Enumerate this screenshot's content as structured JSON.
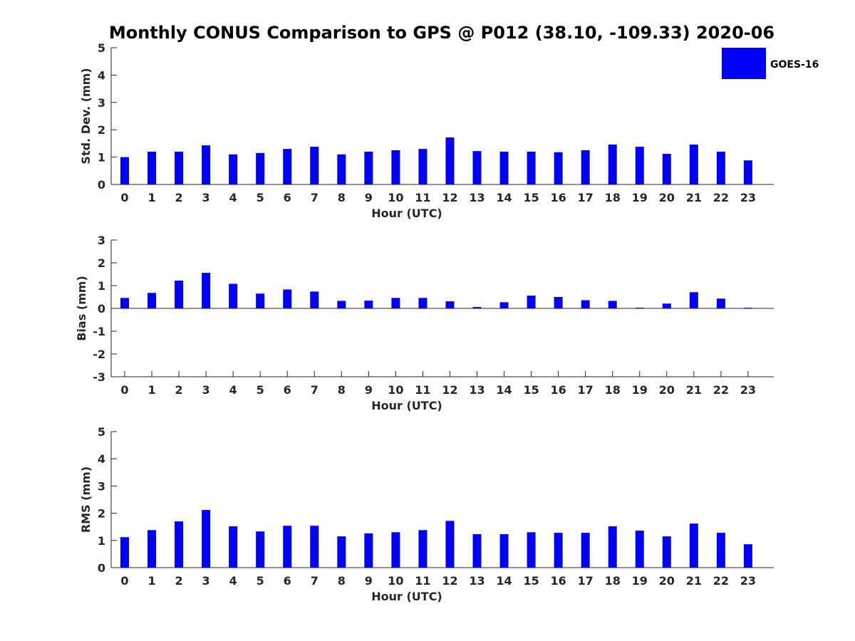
{
  "figure_title": "Monthly CONUS Comparison to GPS @ P012 (38.10, -109.33) 2020-06",
  "legend": {
    "label": "GOES-16",
    "color": "#0000ff"
  },
  "chart_data": [
    {
      "type": "bar",
      "xlabel": "Hour (UTC)",
      "ylabel": "Std. Dev. (mm)",
      "ylim": [
        0,
        5
      ],
      "yticks": [
        "0",
        "1",
        "2",
        "3",
        "4",
        "5"
      ],
      "categories": [
        "0",
        "1",
        "2",
        "3",
        "4",
        "5",
        "6",
        "7",
        "8",
        "9",
        "10",
        "11",
        "12",
        "13",
        "14",
        "15",
        "16",
        "17",
        "18",
        "19",
        "20",
        "21",
        "22",
        "23"
      ],
      "series": [
        {
          "name": "GOES-16",
          "color": "#0000ff",
          "values": [
            1.0,
            1.2,
            1.2,
            1.43,
            1.1,
            1.15,
            1.3,
            1.38,
            1.1,
            1.2,
            1.25,
            1.3,
            1.72,
            1.22,
            1.2,
            1.2,
            1.18,
            1.25,
            1.46,
            1.38,
            1.12,
            1.46,
            1.2,
            0.88
          ]
        }
      ],
      "grid": false
    },
    {
      "type": "bar",
      "xlabel": "Hour (UTC)",
      "ylabel": "Bias (mm)",
      "ylim": [
        -3,
        3
      ],
      "yticks": [
        "-3",
        "-2",
        "-1",
        "0",
        "1",
        "2",
        "3"
      ],
      "categories": [
        "0",
        "1",
        "2",
        "3",
        "4",
        "5",
        "6",
        "7",
        "8",
        "9",
        "10",
        "11",
        "12",
        "13",
        "14",
        "15",
        "16",
        "17",
        "18",
        "19",
        "20",
        "21",
        "22",
        "23"
      ],
      "series": [
        {
          "name": "GOES-16",
          "color": "#0000ff",
          "values": [
            0.46,
            0.68,
            1.22,
            1.56,
            1.08,
            0.65,
            0.83,
            0.74,
            0.33,
            0.34,
            0.46,
            0.46,
            0.31,
            0.06,
            0.27,
            0.56,
            0.5,
            0.36,
            0.33,
            0.03,
            0.21,
            0.71,
            0.43,
            0.03
          ]
        }
      ],
      "grid": false
    },
    {
      "type": "bar",
      "xlabel": "Hour (UTC)",
      "ylabel": "RMS (mm)",
      "ylim": [
        0,
        5
      ],
      "yticks": [
        "0",
        "1",
        "2",
        "3",
        "4",
        "5"
      ],
      "categories": [
        "0",
        "1",
        "2",
        "3",
        "4",
        "5",
        "6",
        "7",
        "8",
        "9",
        "10",
        "11",
        "12",
        "13",
        "14",
        "15",
        "16",
        "17",
        "18",
        "19",
        "20",
        "21",
        "22",
        "23"
      ],
      "series": [
        {
          "name": "GOES-16",
          "color": "#0000ff",
          "values": [
            1.12,
            1.38,
            1.7,
            2.12,
            1.52,
            1.33,
            1.54,
            1.54,
            1.15,
            1.26,
            1.3,
            1.38,
            1.72,
            1.23,
            1.23,
            1.3,
            1.28,
            1.28,
            1.52,
            1.36,
            1.15,
            1.62,
            1.28,
            0.86
          ]
        }
      ],
      "grid": false
    }
  ]
}
